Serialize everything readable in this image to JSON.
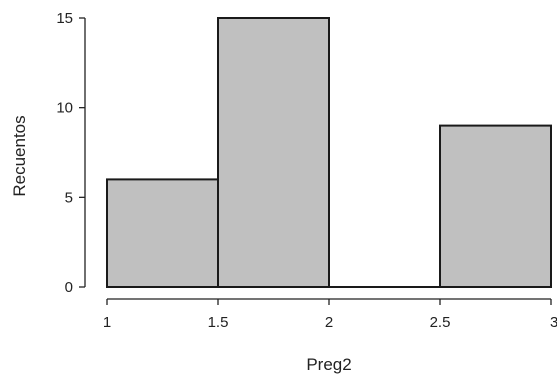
{
  "chart_data": {
    "type": "bar",
    "subtype": "histogram",
    "bins": [
      {
        "x0": 1.0,
        "x1": 1.5,
        "count": 6
      },
      {
        "x0": 1.5,
        "x1": 2.0,
        "count": 15
      },
      {
        "x0": 2.0,
        "x1": 2.5,
        "count": 0
      },
      {
        "x0": 2.5,
        "x1": 3.0,
        "count": 9
      }
    ],
    "xlabel": "Preg2",
    "ylabel": "Recuentos",
    "xlim": [
      1,
      3
    ],
    "ylim": [
      0,
      15
    ],
    "x_ticks": [
      "1",
      "1.5",
      "2",
      "2.5",
      "3"
    ],
    "y_ticks": [
      "0",
      "5",
      "10",
      "15"
    ],
    "grid": false,
    "colors": {
      "bar_fill": "#c0c0c0",
      "bar_stroke": "#1a1a1a",
      "axis": "#222222"
    }
  }
}
